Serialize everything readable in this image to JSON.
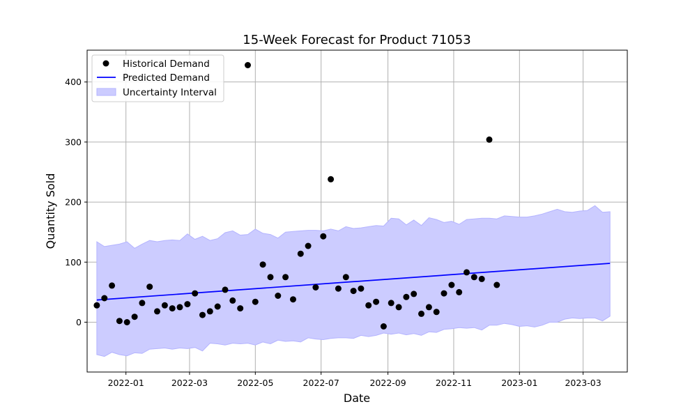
{
  "chart_data": {
    "type": "line",
    "title": "15-Week Forecast for Product 71053",
    "xlabel": "Date",
    "ylabel": "Quantity Sold",
    "xlim": [
      "2021-11-26",
      "2023-04-11"
    ],
    "ylim": [
      -83,
      453
    ],
    "grid": true,
    "legend_position": "top-left",
    "x_ticks": [
      "2022-01",
      "2022-03",
      "2022-05",
      "2022-07",
      "2022-09",
      "2022-11",
      "2023-01",
      "2023-03"
    ],
    "y_ticks": [
      0,
      100,
      200,
      300,
      400
    ],
    "colors": {
      "history": "#000000",
      "prediction": "#0000ff",
      "interval_fill": "#ccccff",
      "interval_edge": "#b3b3ff",
      "grid": "#b0b0b0"
    },
    "legend": [
      {
        "label": "Historical Demand",
        "kind": "marker"
      },
      {
        "label": "Predicted Demand",
        "kind": "line"
      },
      {
        "label": "Uncertainty Interval",
        "kind": "patch"
      }
    ],
    "historical_demand": {
      "name": "Historical Demand",
      "x": [
        "2021-12-05",
        "2021-12-12",
        "2021-12-19",
        "2021-12-26",
        "2022-01-02",
        "2022-01-09",
        "2022-01-16",
        "2022-01-23",
        "2022-01-30",
        "2022-02-06",
        "2022-02-13",
        "2022-02-20",
        "2022-02-27",
        "2022-03-06",
        "2022-03-13",
        "2022-03-20",
        "2022-03-27",
        "2022-04-03",
        "2022-04-10",
        "2022-04-17",
        "2022-04-24",
        "2022-05-01",
        "2022-05-08",
        "2022-05-15",
        "2022-05-22",
        "2022-05-29",
        "2022-06-05",
        "2022-06-12",
        "2022-06-19",
        "2022-06-26",
        "2022-07-03",
        "2022-07-10",
        "2022-07-17",
        "2022-07-24",
        "2022-07-31",
        "2022-08-07",
        "2022-08-14",
        "2022-08-21",
        "2022-08-28",
        "2022-09-04",
        "2022-09-11",
        "2022-09-18",
        "2022-09-25",
        "2022-10-02",
        "2022-10-09",
        "2022-10-16",
        "2022-10-23",
        "2022-10-30",
        "2022-11-06",
        "2022-11-13",
        "2022-11-20",
        "2022-11-27",
        "2022-12-04",
        "2022-12-11"
      ],
      "y": [
        28,
        40,
        61,
        2,
        0,
        9,
        32,
        59,
        18,
        28,
        23,
        25,
        30,
        48,
        12,
        18,
        26,
        54,
        36,
        23,
        428,
        34,
        96,
        75,
        44,
        75,
        38,
        114,
        127,
        58,
        143,
        238,
        56,
        75,
        52,
        56,
        28,
        34,
        -7,
        32,
        25,
        42,
        47,
        14,
        25,
        17,
        48,
        62,
        50,
        83,
        75,
        72,
        304,
        62
      ]
    },
    "predicted_demand": {
      "name": "Predicted Demand",
      "x": [
        "2021-12-05",
        "2023-03-26"
      ],
      "y": [
        37,
        98
      ]
    },
    "uncertainty_interval": {
      "name": "Uncertainty Interval",
      "x": [
        "2021-12-05",
        "2021-12-12",
        "2021-12-19",
        "2021-12-26",
        "2022-01-02",
        "2022-01-09",
        "2022-01-16",
        "2022-01-23",
        "2022-01-30",
        "2022-02-06",
        "2022-02-13",
        "2022-02-20",
        "2022-02-27",
        "2022-03-06",
        "2022-03-13",
        "2022-03-20",
        "2022-03-27",
        "2022-04-03",
        "2022-04-10",
        "2022-04-17",
        "2022-04-24",
        "2022-05-01",
        "2022-05-08",
        "2022-05-15",
        "2022-05-22",
        "2022-05-29",
        "2022-06-05",
        "2022-06-12",
        "2022-06-19",
        "2022-06-26",
        "2022-07-03",
        "2022-07-10",
        "2022-07-17",
        "2022-07-24",
        "2022-07-31",
        "2022-08-07",
        "2022-08-14",
        "2022-08-21",
        "2022-08-28",
        "2022-09-04",
        "2022-09-11",
        "2022-09-18",
        "2022-09-25",
        "2022-10-02",
        "2022-10-09",
        "2022-10-16",
        "2022-10-23",
        "2022-10-30",
        "2022-11-06",
        "2022-11-13",
        "2022-11-20",
        "2022-11-27",
        "2022-12-04",
        "2022-12-11",
        "2022-12-18",
        "2022-12-25",
        "2023-01-01",
        "2023-01-08",
        "2023-01-15",
        "2023-01-22",
        "2023-01-29",
        "2023-02-05",
        "2023-02-12",
        "2023-02-19",
        "2023-02-26",
        "2023-03-05",
        "2023-03-12",
        "2023-03-19",
        "2023-03-26"
      ],
      "lower": [
        -54,
        -57,
        -50,
        -54,
        -56,
        -51,
        -52,
        -45,
        -44,
        -43,
        -45,
        -43,
        -44,
        -42,
        -48,
        -35,
        -36,
        -38,
        -35,
        -36,
        -35,
        -38,
        -33,
        -36,
        -30,
        -32,
        -31,
        -33,
        -26,
        -28,
        -29,
        -27,
        -26,
        -26,
        -27,
        -22,
        -24,
        -22,
        -18,
        -20,
        -18,
        -21,
        -19,
        -22,
        -16,
        -17,
        -12,
        -11,
        -9,
        -10,
        -9,
        -13,
        -5,
        -5,
        -2,
        -4,
        -7,
        -6,
        -8,
        -5,
        0,
        0,
        5,
        7,
        6,
        7,
        7,
        2,
        10
      ],
      "upper": [
        134,
        126,
        128,
        130,
        134,
        123,
        130,
        136,
        134,
        136,
        137,
        136,
        147,
        138,
        143,
        136,
        139,
        149,
        152,
        145,
        146,
        155,
        148,
        146,
        140,
        150,
        151,
        152,
        153,
        153,
        152,
        155,
        152,
        159,
        156,
        157,
        159,
        161,
        160,
        173,
        172,
        162,
        170,
        161,
        174,
        171,
        166,
        168,
        163,
        171,
        172,
        173,
        173,
        172,
        177,
        176,
        175,
        175,
        177,
        180,
        184,
        188,
        184,
        183,
        185,
        186,
        194,
        183,
        184
      ]
    }
  }
}
